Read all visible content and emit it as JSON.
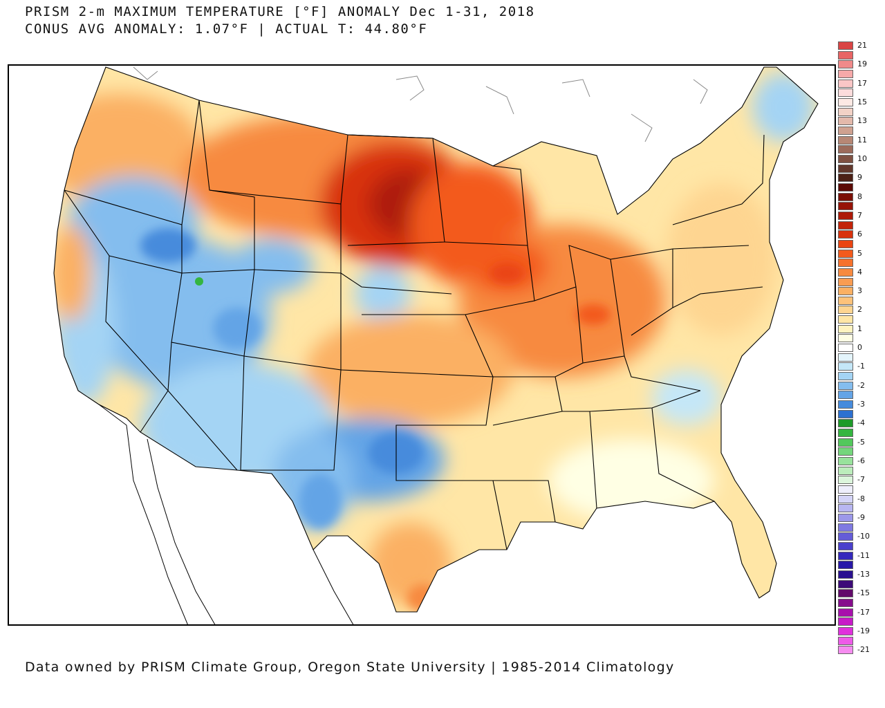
{
  "title": {
    "line1": "PRISM 2-m MAXIMUM TEMPERATURE [°F] ANOMALY Dec 1-31, 2018",
    "line2": "CONUS AVG ANOMALY: 1.07°F | ACTUAL T: 44.80°F"
  },
  "footer": "Data owned by PRISM Climate Group, Oregon State University | 1985-2014 Climatology",
  "legend": [
    {
      "label": "21",
      "color": "#d94545"
    },
    {
      "label": "",
      "color": "#e86464"
    },
    {
      "label": "19",
      "color": "#f08a8a"
    },
    {
      "label": "",
      "color": "#f6a9a9"
    },
    {
      "label": "17",
      "color": "#fac6c6"
    },
    {
      "label": "",
      "color": "#fcdcdc"
    },
    {
      "label": "15",
      "color": "#fde9e4"
    },
    {
      "label": "",
      "color": "#f2d2c6"
    },
    {
      "label": "13",
      "color": "#e3b9ab"
    },
    {
      "label": "",
      "color": "#cfa190"
    },
    {
      "label": "11",
      "color": "#b78775"
    },
    {
      "label": "",
      "color": "#9c6b5b"
    },
    {
      "label": "10",
      "color": "#7f5142"
    },
    {
      "label": "",
      "color": "#62382c"
    },
    {
      "label": "9",
      "color": "#4c2116"
    },
    {
      "label": "",
      "color": "#5c0a05"
    },
    {
      "label": "8",
      "color": "#7a0f06"
    },
    {
      "label": "",
      "color": "#961308"
    },
    {
      "label": "7",
      "color": "#ad1a08"
    },
    {
      "label": "",
      "color": "#c3240a"
    },
    {
      "label": "6",
      "color": "#d8320d"
    },
    {
      "label": "",
      "color": "#ea4512"
    },
    {
      "label": "5",
      "color": "#f35a1c"
    },
    {
      "label": "",
      "color": "#f6722d"
    },
    {
      "label": "4",
      "color": "#f78a40"
    },
    {
      "label": "",
      "color": "#f99c52"
    },
    {
      "label": "3",
      "color": "#fbb063"
    },
    {
      "label": "",
      "color": "#fdc27a"
    },
    {
      "label": "2",
      "color": "#fed591"
    },
    {
      "label": "",
      "color": "#ffe6a6"
    },
    {
      "label": "1",
      "color": "#fff3bf"
    },
    {
      "label": "",
      "color": "#ffffe4"
    },
    {
      "label": "0",
      "color": "#ffffff"
    },
    {
      "label": "",
      "color": "#e4f5fc"
    },
    {
      "label": "-1",
      "color": "#c4e7f8"
    },
    {
      "label": "",
      "color": "#a4d4f4"
    },
    {
      "label": "-2",
      "color": "#84bdee"
    },
    {
      "label": "",
      "color": "#64a4e6"
    },
    {
      "label": "-3",
      "color": "#468bdc"
    },
    {
      "label": "",
      "color": "#2c70d0"
    },
    {
      "label": "-4",
      "color": "#1e9a2a"
    },
    {
      "label": "",
      "color": "#34b540"
    },
    {
      "label": "-5",
      "color": "#52c85c"
    },
    {
      "label": "",
      "color": "#74d67c"
    },
    {
      "label": "-6",
      "color": "#98e29c"
    },
    {
      "label": "",
      "color": "#bcedbc"
    },
    {
      "label": "-7",
      "color": "#dcf5dc"
    },
    {
      "label": "",
      "color": "#eeeefc"
    },
    {
      "label": "-8",
      "color": "#d4d4f8"
    },
    {
      "label": "",
      "color": "#b8b6f2"
    },
    {
      "label": "-9",
      "color": "#9c98ea"
    },
    {
      "label": "",
      "color": "#807ae2"
    },
    {
      "label": "-10",
      "color": "#645cd8"
    },
    {
      "label": "",
      "color": "#4a40cc"
    },
    {
      "label": "-11",
      "color": "#3428bc"
    },
    {
      "label": "",
      "color": "#2818a8"
    },
    {
      "label": "-13",
      "color": "#2a1090"
    },
    {
      "label": "",
      "color": "#3c0a78"
    },
    {
      "label": "-15",
      "color": "#620a6a"
    },
    {
      "label": "",
      "color": "#860c8c"
    },
    {
      "label": "-17",
      "color": "#a810ac"
    },
    {
      "label": "",
      "color": "#c81ac8"
    },
    {
      "label": "-19",
      "color": "#e030dc"
    },
    {
      "label": "",
      "color": "#ee5ae8"
    },
    {
      "label": "-21",
      "color": "#f68cf0"
    }
  ],
  "regions": [
    {
      "name": "pacific-northwest-warm",
      "color": "#fbb063"
    },
    {
      "name": "northern-plains-warm",
      "color": "#f35a1c"
    },
    {
      "name": "dakotas-hot",
      "color": "#ad1a08"
    },
    {
      "name": "midwest-warm",
      "color": "#f78a40"
    },
    {
      "name": "great-basin-cool",
      "color": "#84bdee"
    },
    {
      "name": "southwest-cool",
      "color": "#a4d4f4"
    },
    {
      "name": "west-texas-cool",
      "color": "#64a4e6"
    },
    {
      "name": "southeast-mild",
      "color": "#ffe6a6"
    },
    {
      "name": "northeast-mild",
      "color": "#fed591"
    },
    {
      "name": "gulf-coast-warm",
      "color": "#fbb063"
    },
    {
      "name": "maine-cool",
      "color": "#a4d4f4"
    }
  ]
}
